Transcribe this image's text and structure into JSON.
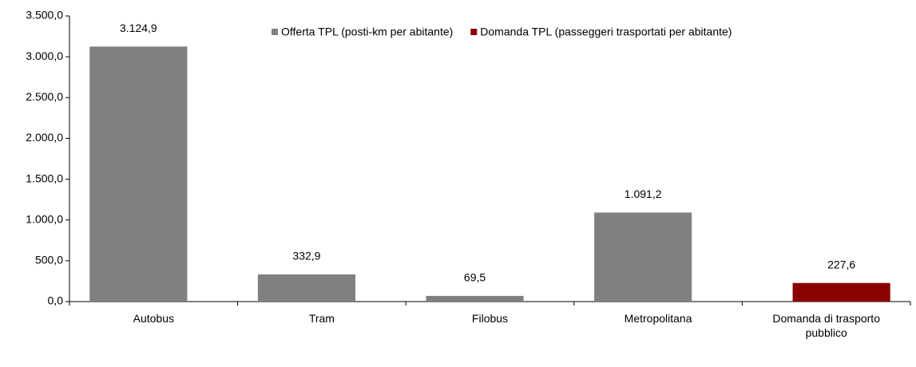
{
  "chart_data": {
    "type": "bar",
    "categories": [
      "Autobus",
      "Tram",
      "Filobus",
      "Metropolitana",
      "Domanda di trasporto pubblico"
    ],
    "series": [
      {
        "name": "Offerta TPL (posti-km per abitante)",
        "color": "#808080",
        "values": [
          3124.9,
          332.9,
          69.5,
          1091.2,
          null
        ],
        "value_labels": [
          "3.124,9",
          "332,9",
          "69,5",
          "1.091,2",
          null
        ]
      },
      {
        "name": "Domanda TPL (passeggeri trasportati per abitante)",
        "color": "#8b0000",
        "values": [
          null,
          null,
          null,
          null,
          227.6
        ],
        "value_labels": [
          null,
          null,
          null,
          null,
          "227,6"
        ]
      }
    ],
    "ylim": [
      0,
      3500
    ],
    "yticks": [
      {
        "value": 0,
        "label": "0,0"
      },
      {
        "value": 500,
        "label": "500,0"
      },
      {
        "value": 1000,
        "label": "1.000,0"
      },
      {
        "value": 1500,
        "label": "1.500,0"
      },
      {
        "value": 2000,
        "label": "2.000,0"
      },
      {
        "value": 2500,
        "label": "2.500,0"
      },
      {
        "value": 3000,
        "label": "3.000,0"
      },
      {
        "value": 3500,
        "label": "3.500,0"
      }
    ],
    "grid": false,
    "legend": "top"
  }
}
